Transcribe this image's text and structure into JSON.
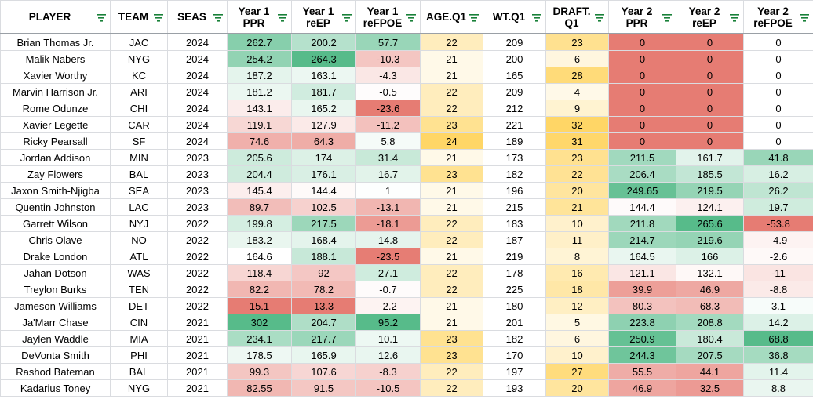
{
  "columns": [
    {
      "key": "player",
      "label": "PLAYER"
    },
    {
      "key": "team",
      "label": "TEAM"
    },
    {
      "key": "seas",
      "label": "SEAS"
    },
    {
      "key": "y1ppr",
      "label": "Year 1\nPPR"
    },
    {
      "key": "y1reep",
      "label": "Year 1\nreEP"
    },
    {
      "key": "y1refpoe",
      "label": "Year 1\nreFPOE"
    },
    {
      "key": "age",
      "label": "AGE.Q1"
    },
    {
      "key": "wt",
      "label": "WT.Q1"
    },
    {
      "key": "draft",
      "label": "DRAFT.\nQ1"
    },
    {
      "key": "y2ppr",
      "label": "Year 2\nPPR"
    },
    {
      "key": "y2reep",
      "label": "Year 2\nreEP"
    },
    {
      "key": "y2refpoe",
      "label": "Year 2\nreFPOE"
    }
  ],
  "rows": [
    [
      "Brian Thomas Jr.",
      "JAC",
      "2024",
      "262.7",
      "200.2",
      "57.7",
      "22",
      "209",
      "23",
      "0",
      "0",
      "0"
    ],
    [
      "Malik Nabers",
      "NYG",
      "2024",
      "254.2",
      "264.3",
      "-10.3",
      "21",
      "200",
      "6",
      "0",
      "0",
      "0"
    ],
    [
      "Xavier Worthy",
      "KC",
      "2024",
      "187.2",
      "163.1",
      "-4.3",
      "21",
      "165",
      "28",
      "0",
      "0",
      "0"
    ],
    [
      "Marvin Harrison Jr.",
      "ARI",
      "2024",
      "181.2",
      "181.7",
      "-0.5",
      "22",
      "209",
      "4",
      "0",
      "0",
      "0"
    ],
    [
      "Rome Odunze",
      "CHI",
      "2024",
      "143.1",
      "165.2",
      "-23.6",
      "22",
      "212",
      "9",
      "0",
      "0",
      "0"
    ],
    [
      "Xavier Legette",
      "CAR",
      "2024",
      "119.1",
      "127.9",
      "-11.2",
      "23",
      "221",
      "32",
      "0",
      "0",
      "0"
    ],
    [
      "Ricky Pearsall",
      "SF",
      "2024",
      "74.6",
      "64.3",
      "5.8",
      "24",
      "189",
      "31",
      "0",
      "0",
      "0"
    ],
    [
      "Jordan Addison",
      "MIN",
      "2023",
      "205.6",
      "174",
      "31.4",
      "21",
      "173",
      "23",
      "211.5",
      "161.7",
      "41.8"
    ],
    [
      "Zay Flowers",
      "BAL",
      "2023",
      "204.4",
      "176.1",
      "16.7",
      "23",
      "182",
      "22",
      "206.4",
      "185.5",
      "16.2"
    ],
    [
      "Jaxon Smith-Njigba",
      "SEA",
      "2023",
      "145.4",
      "144.4",
      "1",
      "21",
      "196",
      "20",
      "249.65",
      "219.5",
      "26.2"
    ],
    [
      "Quentin Johnston",
      "LAC",
      "2023",
      "89.7",
      "102.5",
      "-13.1",
      "21",
      "215",
      "21",
      "144.4",
      "124.1",
      "19.7"
    ],
    [
      "Garrett Wilson",
      "NYJ",
      "2022",
      "199.8",
      "217.5",
      "-18.1",
      "22",
      "183",
      "10",
      "211.8",
      "265.6",
      "-53.8"
    ],
    [
      "Chris Olave",
      "NO",
      "2022",
      "183.2",
      "168.4",
      "14.8",
      "22",
      "187",
      "11",
      "214.7",
      "219.6",
      "-4.9"
    ],
    [
      "Drake London",
      "ATL",
      "2022",
      "164.6",
      "188.1",
      "-23.5",
      "21",
      "219",
      "8",
      "164.5",
      "166",
      "-2.6"
    ],
    [
      "Jahan Dotson",
      "WAS",
      "2022",
      "118.4",
      "92",
      "27.1",
      "22",
      "178",
      "16",
      "121.1",
      "132.1",
      "-11"
    ],
    [
      "Treylon Burks",
      "TEN",
      "2022",
      "82.2",
      "78.2",
      "-0.7",
      "22",
      "225",
      "18",
      "39.9",
      "46.9",
      "-8.8"
    ],
    [
      "Jameson Williams",
      "DET",
      "2022",
      "15.1",
      "13.3",
      "-2.2",
      "21",
      "180",
      "12",
      "80.3",
      "68.3",
      "3.1"
    ],
    [
      "Ja'Marr Chase",
      "CIN",
      "2021",
      "302",
      "204.7",
      "95.2",
      "21",
      "201",
      "5",
      "223.8",
      "208.8",
      "14.2"
    ],
    [
      "Jaylen Waddle",
      "MIA",
      "2021",
      "234.1",
      "217.7",
      "10.1",
      "23",
      "182",
      "6",
      "250.9",
      "180.4",
      "68.8"
    ],
    [
      "DeVonta Smith",
      "PHI",
      "2021",
      "178.5",
      "165.9",
      "12.6",
      "23",
      "170",
      "10",
      "244.3",
      "207.5",
      "36.8"
    ],
    [
      "Rashod Bateman",
      "BAL",
      "2021",
      "99.3",
      "107.6",
      "-8.3",
      "22",
      "197",
      "27",
      "55.5",
      "44.1",
      "11.4"
    ],
    [
      "Kadarius Toney",
      "NYG",
      "2021",
      "82.55",
      "91.5",
      "-10.5",
      "22",
      "193",
      "20",
      "46.9",
      "32.5",
      "8.8"
    ]
  ],
  "colors": {
    "green_strong": "#57bb8a",
    "white": "#ffffff",
    "red_strong": "#e67c73",
    "yellow_strong": "#ffd666",
    "filter_icon": "#188038"
  },
  "color_scales": {
    "y1ppr": {
      "type": "green-red",
      "min": 15.1,
      "mid": 165,
      "max": 302
    },
    "y1reep": {
      "type": "green-red",
      "min": 13.3,
      "mid": 150,
      "max": 264.3
    },
    "y1refpoe": {
      "type": "green-red",
      "min": -23.6,
      "mid": 0,
      "max": 95.2
    },
    "age": {
      "type": "yellow",
      "min": 21,
      "max": 24
    },
    "wt": {
      "type": "none"
    },
    "draft": {
      "type": "yellow",
      "min": 4,
      "max": 32
    },
    "y2ppr": {
      "type": "green-red",
      "min": 0,
      "mid": 150,
      "max": 260
    },
    "y2reep": {
      "type": "green-red",
      "min": 0,
      "mid": 140,
      "max": 265.6
    },
    "y2refpoe": {
      "type": "green-red",
      "min": -53.8,
      "mid": 0,
      "max": 68.8
    }
  }
}
